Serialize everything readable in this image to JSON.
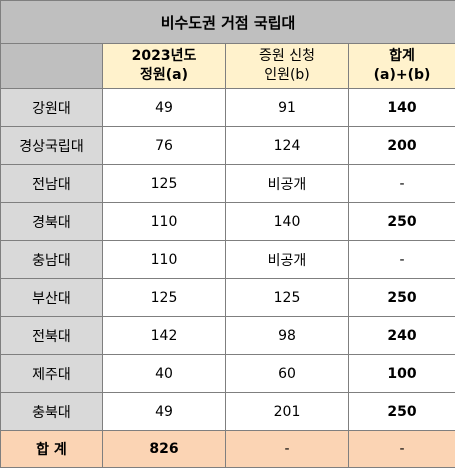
{
  "title": "비수도권 거점 국립대",
  "headers": {
    "col_a_line1": "2023년도",
    "col_a_line2": "정원(a)",
    "col_b_line1": "증원 신청",
    "col_b_line2": "인원(b)",
    "col_c_line1": "합계",
    "col_c_line2": "(a)+(b)"
  },
  "rows": [
    {
      "name": "강원대",
      "a": "49",
      "b": "91",
      "sum": "140"
    },
    {
      "name": "경상국립대",
      "a": "76",
      "b": "124",
      "sum": "200"
    },
    {
      "name": "전남대",
      "a": "125",
      "b": "비공개",
      "sum": "-"
    },
    {
      "name": "경북대",
      "a": "110",
      "b": "140",
      "sum": "250"
    },
    {
      "name": "충남대",
      "a": "110",
      "b": "비공개",
      "sum": "-"
    },
    {
      "name": "부산대",
      "a": "125",
      "b": "125",
      "sum": "250"
    },
    {
      "name": "전북대",
      "a": "142",
      "b": "98",
      "sum": "240"
    },
    {
      "name": "제주대",
      "a": "40",
      "b": "60",
      "sum": "100"
    },
    {
      "name": "충북대",
      "a": "49",
      "b": "201",
      "sum": "250"
    }
  ],
  "total": {
    "label": "합 계",
    "a": "826",
    "b": "-",
    "sum": "-"
  },
  "colors": {
    "title_bg": "#bfbfbf",
    "header_bg": "#fff2cc",
    "row_label_bg": "#d9d9d9",
    "total_bg": "#fbd4b4"
  }
}
